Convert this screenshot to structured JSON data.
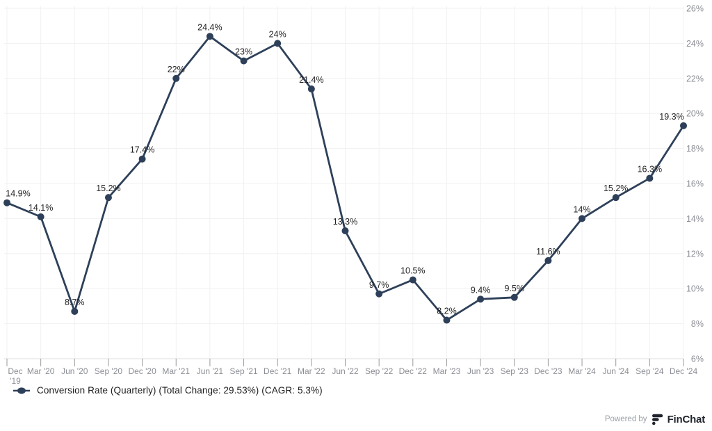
{
  "chart_data": {
    "type": "line",
    "title": "",
    "series_name": "Conversion Rate (Quarterly)",
    "categories": [
      "Dec '19",
      "Mar '20",
      "Jun '20",
      "Sep '20",
      "Dec '20",
      "Mar '21",
      "Jun '21",
      "Sep '21",
      "Dec '21",
      "Mar '22",
      "Jun '22",
      "Sep '22",
      "Dec '22",
      "Mar '23",
      "Jun '23",
      "Sep '23",
      "Dec '23",
      "Mar '24",
      "Jun '24",
      "Sep '24",
      "Dec '24"
    ],
    "values": [
      14.9,
      14.1,
      8.7,
      15.2,
      17.4,
      22,
      24.4,
      23,
      24,
      21.4,
      13.3,
      9.7,
      10.5,
      8.2,
      9.4,
      9.5,
      11.6,
      14,
      15.2,
      16.3,
      19.3
    ],
    "point_labels": [
      "14.9%",
      "14.1%",
      "8.7%",
      "15.2%",
      "17.4%",
      "22%",
      "24.4%",
      "23%",
      "24%",
      "21.4%",
      "13.3%",
      "9.7%",
      "10.5%",
      "8.2%",
      "9.4%",
      "9.5%",
      "11.6%",
      "14%",
      "15.2%",
      "16.3%",
      "19.3%"
    ],
    "ylim": [
      6,
      26
    ],
    "y_tick_values": [
      6,
      8,
      10,
      12,
      14,
      16,
      18,
      20,
      22,
      24,
      26
    ],
    "y_tick_labels": [
      "6%",
      "8%",
      "10%",
      "12%",
      "14%",
      "16%",
      "18%",
      "20%",
      "22%",
      "24%",
      "26%"
    ],
    "y_axis_side": "right",
    "grid": true,
    "legend_position": "bottom-left",
    "line_color": "#2e4059",
    "point_label_color": "#232323",
    "axis_text_color": "#8b8e94",
    "grid_color": "#f1f1f1",
    "axis_line_color": "#dcdcdc",
    "tick_color": "#9a9a9a"
  },
  "legend": {
    "label": "Conversion Rate (Quarterly) (Total Change: 29.53%) (CAGR: 5.3%)"
  },
  "footer": {
    "powered_by": "Powered by",
    "brand": "FinChat"
  }
}
